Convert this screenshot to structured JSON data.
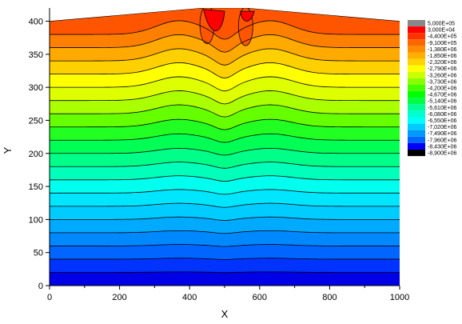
{
  "chart_data": {
    "type": "contour",
    "xlabel": "X",
    "ylabel": "Y",
    "xlim": [
      0,
      1000
    ],
    "ylim": [
      0,
      420
    ],
    "x_ticks": [
      "0",
      "200",
      "400",
      "600",
      "800",
      "1000"
    ],
    "y_ticks": [
      "0",
      "50",
      "100",
      "150",
      "200",
      "250",
      "300",
      "350",
      "400"
    ],
    "legend_position": "right",
    "legend": {
      "levels": [
        "5,000E+05",
        "3,000E+04",
        "-4,400E+05",
        "-9,100E+05",
        "-1,380E+06",
        "-1,850E+06",
        "-2,320E+06",
        "-2,790E+06",
        "-3,260E+06",
        "-3,730E+06",
        "-4,200E+06",
        "-4,670E+06",
        "-5,140E+06",
        "-5,610E+06",
        "-6,080E+06",
        "-6,550E+06",
        "-7,020E+06",
        "-7,490E+06",
        "-7,960E+06",
        "-8,430E+06",
        "-8,900E+06"
      ],
      "colors": [
        "#888888",
        "#ff0000",
        "#ff3300",
        "#ff6600",
        "#ff8c00",
        "#ffb000",
        "#ffd500",
        "#ffff00",
        "#ccff00",
        "#88ff00",
        "#44ff00",
        "#00ff00",
        "#00ff44",
        "#00ff99",
        "#00ffcc",
        "#00ffff",
        "#00ccff",
        "#0099ff",
        "#0066ff",
        "#0000ff",
        "#000000"
      ]
    },
    "surface": {
      "x": [
        0,
        1000
      ],
      "y": [
        400,
        420,
        420,
        400
      ],
      "x_break": [
        0,
        440,
        560,
        1000
      ]
    },
    "contour_levels_y_at_edge": [
      20,
      40,
      60,
      80,
      100,
      120,
      140,
      160,
      180,
      200,
      220,
      240,
      260,
      280,
      300,
      320,
      340,
      360,
      380
    ]
  }
}
